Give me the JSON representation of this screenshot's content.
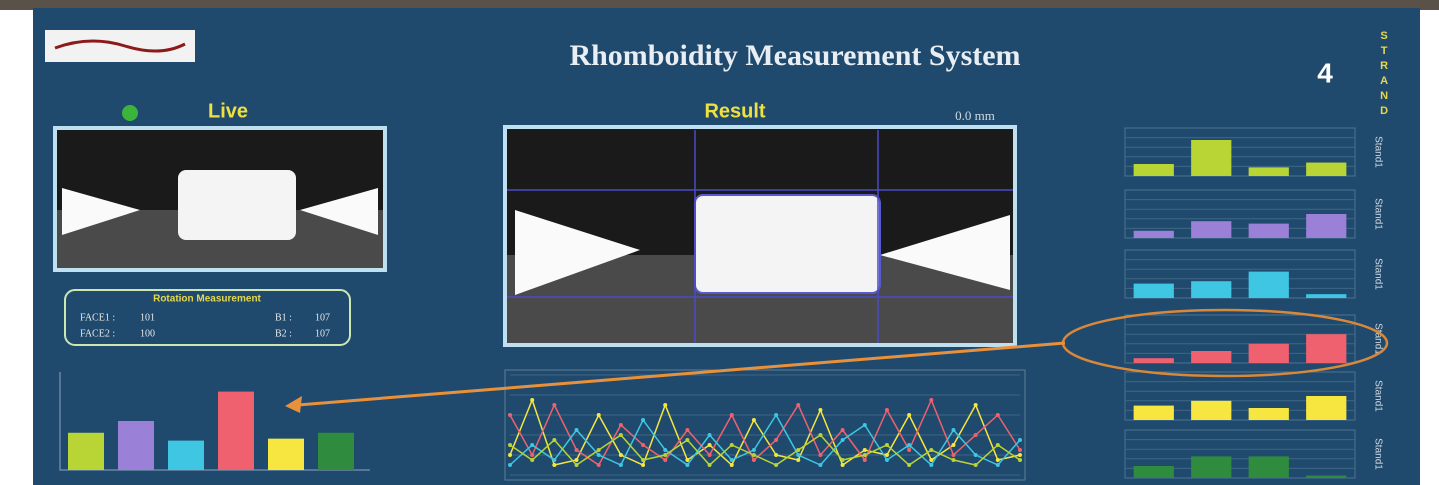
{
  "header": {
    "title": "Rhomboidity Measurement System",
    "strand_number": "4",
    "strand_label": "STRAND"
  },
  "live": {
    "label": "Live"
  },
  "result": {
    "label": "Result",
    "offset": "0.0 mm"
  },
  "rotation": {
    "title": "Rotation Measurement",
    "fields": [
      {
        "label": "FACE1 :",
        "value": "101"
      },
      {
        "label": "B1 :",
        "value": "107"
      },
      {
        "label": "FACE2 :",
        "value": "100"
      },
      {
        "label": "B2 :",
        "value": "107"
      }
    ]
  },
  "summary_chart": {
    "ylim": [
      0,
      100
    ],
    "values": [
      38,
      50,
      30,
      80,
      32,
      38
    ],
    "colors": [
      "#b8d435",
      "#9a80d6",
      "#3ec6e2",
      "#f0616f",
      "#f6e63f",
      "#2f8c3f"
    ]
  },
  "trend_chart": {
    "ylim": [
      0,
      100
    ],
    "series": [
      {
        "color": "#f6e63f",
        "values": [
          20,
          75,
          10,
          15,
          60,
          20,
          10,
          70,
          15,
          30,
          10,
          55,
          20,
          15,
          65,
          10,
          25,
          20,
          60,
          15,
          30,
          70,
          15,
          20
        ]
      },
      {
        "color": "#f0616f",
        "values": [
          60,
          20,
          70,
          25,
          10,
          50,
          30,
          15,
          45,
          20,
          60,
          15,
          35,
          70,
          20,
          45,
          15,
          65,
          25,
          75,
          20,
          40,
          60,
          25
        ]
      },
      {
        "color": "#3ec6e2",
        "values": [
          10,
          30,
          15,
          45,
          20,
          10,
          55,
          25,
          10,
          40,
          15,
          25,
          60,
          20,
          10,
          35,
          50,
          15,
          30,
          10,
          45,
          20,
          10,
          35
        ]
      },
      {
        "color": "#b8d435",
        "values": [
          30,
          15,
          35,
          10,
          25,
          40,
          15,
          20,
          35,
          10,
          30,
          20,
          10,
          25,
          40,
          15,
          20,
          30,
          10,
          25,
          15,
          10,
          30,
          15
        ]
      }
    ]
  },
  "strand_charts": {
    "ylim": [
      0,
      100
    ],
    "charts": [
      {
        "label": "Stand1",
        "color": "#b8d435",
        "values": [
          25,
          75,
          18,
          28
        ]
      },
      {
        "label": "Stand1",
        "color": "#9a80d6",
        "values": [
          15,
          35,
          30,
          50
        ]
      },
      {
        "label": "Stand1",
        "color": "#3ec6e2",
        "values": [
          30,
          35,
          55,
          8
        ]
      },
      {
        "label": "Stand1",
        "color": "#f0616f",
        "values": [
          10,
          25,
          40,
          60
        ]
      },
      {
        "label": "Stand1",
        "color": "#f6e63f",
        "values": [
          30,
          40,
          25,
          50
        ]
      },
      {
        "label": "Stand1",
        "color": "#2f8c3f",
        "values": [
          25,
          45,
          45,
          5
        ]
      }
    ]
  }
}
